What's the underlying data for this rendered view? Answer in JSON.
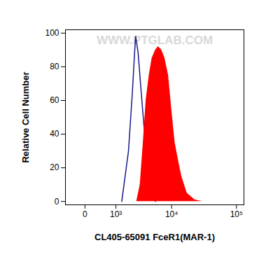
{
  "chart_data": {
    "type": "line",
    "xlabel": "CL405-65091 FceR1(MAR-1)",
    "ylabel": "Relative Cell Number",
    "annotations": [
      "WWW.PTGLAB.COM"
    ],
    "xlim": [
      -500,
      130000
    ],
    "ylim": [
      -2,
      102
    ],
    "xticks": [
      0,
      {
        "value": 1000,
        "label": "10³"
      },
      {
        "value": 10000,
        "label": "10⁴"
      },
      {
        "value": 100000,
        "label": "10⁵"
      }
    ],
    "yticks": [
      0,
      20,
      40,
      60,
      80,
      100
    ],
    "series": [
      {
        "type": "line",
        "color": "#1a1a8c",
        "x": [
          1340,
          1830,
          2170,
          2400,
          2500,
          2770,
          3050,
          3500,
          4100,
          4700,
          5500
        ],
        "values": [
          0,
          30,
          65,
          90,
          98,
          88,
          70,
          45,
          20,
          5,
          0
        ]
      },
      {
        "type": "area",
        "color": "#ff0000",
        "x": [
          2600,
          3000,
          3400,
          3800,
          4300,
          4800,
          5500,
          6100,
          6900,
          7800,
          8900,
          10000,
          11300,
          12700,
          14400,
          17500,
          23000,
          30000
        ],
        "values": [
          0,
          10,
          35,
          60,
          75,
          85,
          90,
          92,
          90,
          85,
          75,
          55,
          35,
          25,
          15,
          5,
          1,
          0
        ]
      }
    ]
  }
}
